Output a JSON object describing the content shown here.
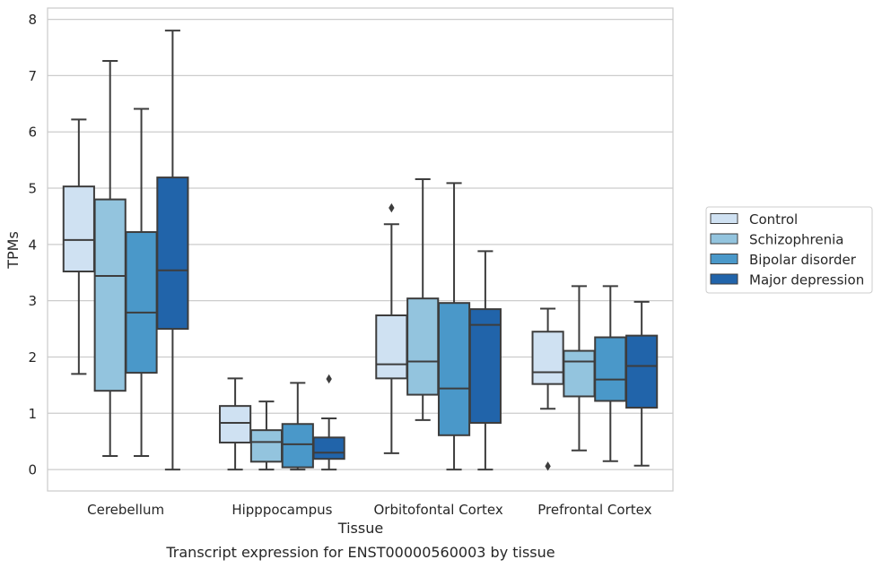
{
  "chart_data": {
    "type": "boxplot",
    "title": "Transcript expression for ENST00000560003 by tissue",
    "xlabel": "Tissue",
    "ylabel": "TPMs",
    "ylim": [
      -0.38,
      8.2
    ],
    "yticks": [
      0,
      1,
      2,
      3,
      4,
      5,
      6,
      7,
      8
    ],
    "grid": true,
    "legend_position": "right",
    "categories": [
      "Cerebellum",
      "Hipppocampus",
      "Orbitofontal Cortex",
      "Prefrontal Cortex"
    ],
    "series": [
      {
        "name": "Control",
        "color": "#cfe1f2",
        "boxes": [
          {
            "min": 1.7,
            "q1": 3.52,
            "median": 4.08,
            "q3": 5.03,
            "max": 6.22,
            "outliers": []
          },
          {
            "min": 0.0,
            "q1": 0.48,
            "median": 0.83,
            "q3": 1.13,
            "max": 1.62,
            "outliers": []
          },
          {
            "min": 0.29,
            "q1": 1.62,
            "median": 1.87,
            "q3": 2.74,
            "max": 4.36,
            "outliers": [
              4.65
            ]
          },
          {
            "min": 1.08,
            "q1": 1.52,
            "median": 1.73,
            "q3": 2.45,
            "max": 2.86,
            "outliers": [
              0.06
            ]
          }
        ]
      },
      {
        "name": "Schizophrenia",
        "color": "#93c4de",
        "boxes": [
          {
            "min": 0.24,
            "q1": 1.4,
            "median": 3.44,
            "q3": 4.8,
            "max": 7.26,
            "outliers": []
          },
          {
            "min": 0.0,
            "q1": 0.14,
            "median": 0.49,
            "q3": 0.7,
            "max": 1.21,
            "outliers": []
          },
          {
            "min": 0.88,
            "q1": 1.33,
            "median": 1.92,
            "q3": 3.04,
            "max": 5.16,
            "outliers": []
          },
          {
            "min": 0.34,
            "q1": 1.3,
            "median": 1.92,
            "q3": 2.11,
            "max": 3.26,
            "outliers": []
          }
        ]
      },
      {
        "name": "Bipolar disorder",
        "color": "#4a98c9",
        "boxes": [
          {
            "min": 0.24,
            "q1": 1.72,
            "median": 2.79,
            "q3": 4.22,
            "max": 6.41,
            "outliers": []
          },
          {
            "min": 0.0,
            "q1": 0.04,
            "median": 0.45,
            "q3": 0.81,
            "max": 1.54,
            "outliers": []
          },
          {
            "min": 0.0,
            "q1": 0.61,
            "median": 1.44,
            "q3": 2.96,
            "max": 5.09,
            "outliers": []
          },
          {
            "min": 0.15,
            "q1": 1.22,
            "median": 1.6,
            "q3": 2.35,
            "max": 3.26,
            "outliers": []
          }
        ]
      },
      {
        "name": "Major depression",
        "color": "#2164aa",
        "boxes": [
          {
            "min": 0.0,
            "q1": 2.5,
            "median": 3.54,
            "q3": 5.19,
            "max": 7.8,
            "outliers": []
          },
          {
            "min": 0.0,
            "q1": 0.19,
            "median": 0.3,
            "q3": 0.57,
            "max": 0.91,
            "outliers": [
              1.61
            ]
          },
          {
            "min": 0.0,
            "q1": 0.83,
            "median": 2.57,
            "q3": 2.85,
            "max": 3.88,
            "outliers": []
          },
          {
            "min": 0.07,
            "q1": 1.1,
            "median": 1.84,
            "q3": 2.38,
            "max": 2.98,
            "outliers": []
          }
        ]
      }
    ]
  }
}
